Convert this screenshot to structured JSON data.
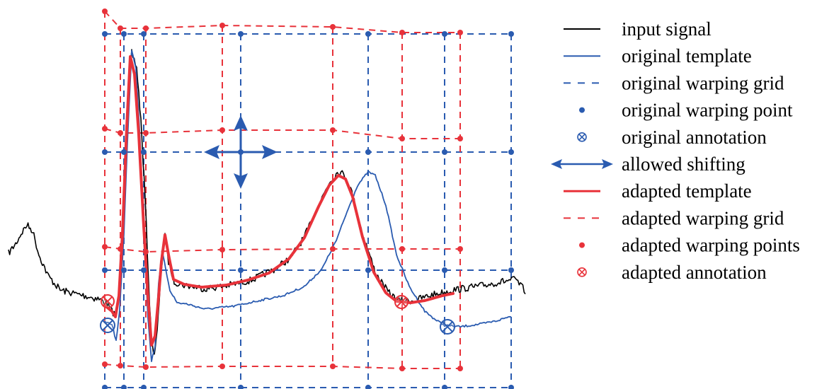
{
  "colors": {
    "input": "#000000",
    "original": "#2a5bb0",
    "adapted": "#e8323a"
  },
  "legend": {
    "items": [
      {
        "label": "input signal",
        "symbol": "line",
        "color": "#000000"
      },
      {
        "label": "original template",
        "symbol": "line",
        "color": "#2a5bb0"
      },
      {
        "label": "original warping grid",
        "symbol": "dashed-line",
        "color": "#2a5bb0"
      },
      {
        "label": "original warping point",
        "symbol": "dot",
        "color": "#2a5bb0"
      },
      {
        "label": "original annotation",
        "symbol": "circled-x",
        "color": "#2a5bb0"
      },
      {
        "label": "allowed shifting",
        "symbol": "double-arrow",
        "color": "#2a5bb0"
      },
      {
        "label": "adapted template",
        "symbol": "thick-line",
        "color": "#e8323a"
      },
      {
        "label": "adapted warping grid",
        "symbol": "dashed-line",
        "color": "#e8323a"
      },
      {
        "label": "adapted warping points",
        "symbol": "dot",
        "color": "#e8323a"
      },
      {
        "label": "adapted annotation",
        "symbol": "circled-x",
        "color": "#e8323a"
      }
    ]
  }
}
